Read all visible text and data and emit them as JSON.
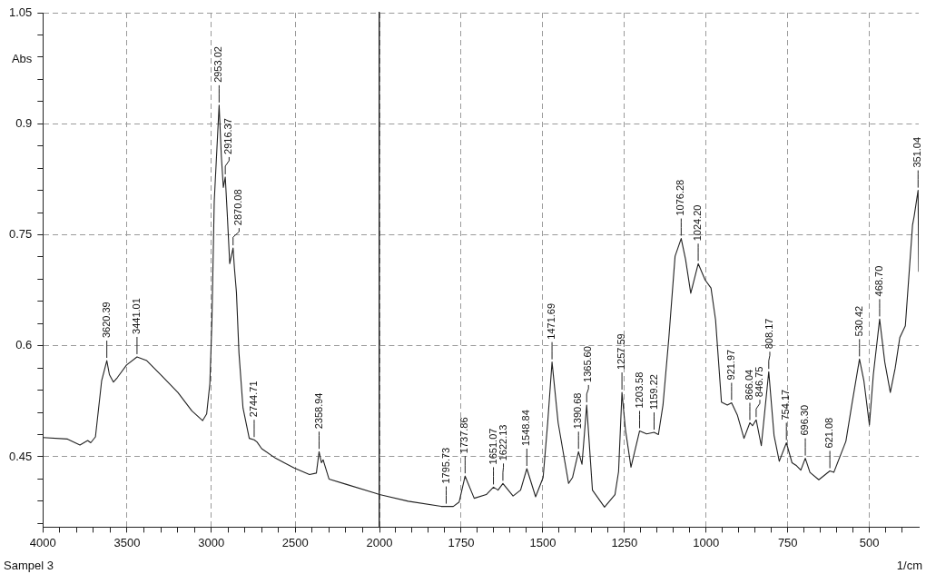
{
  "chart_data": [
    {
      "type": "line",
      "ylabel": "Abs",
      "color": "#222222",
      "grid": true,
      "xlim": [
        4000,
        2000
      ],
      "ylim": [
        0.355,
        1.05
      ],
      "xticks": [
        4000,
        {
          "value": 3900,
          "label": null
        },
        {
          "value": 3800,
          "label": null
        },
        {
          "value": 3700,
          "label": null
        },
        {
          "value": 3600,
          "label": null
        },
        3500,
        {
          "value": 3400,
          "label": null
        },
        {
          "value": 3300,
          "label": null
        },
        {
          "value": 3200,
          "label": null
        },
        {
          "value": 3100,
          "label": null
        },
        3000,
        {
          "value": 2900,
          "label": null
        },
        {
          "value": 2800,
          "label": null
        },
        {
          "value": 2700,
          "label": null
        },
        {
          "value": 2600,
          "label": null
        },
        2500,
        {
          "value": 2400,
          "label": null
        },
        {
          "value": 2300,
          "label": null
        },
        {
          "value": 2200,
          "label": null
        },
        {
          "value": 2100,
          "label": null
        },
        2000
      ],
      "yticks": [
        {
          "value": 0.36,
          "label": null
        },
        {
          "value": 0.39,
          "label": null
        },
        {
          "value": 0.42,
          "label": null
        },
        0.45,
        {
          "value": 0.48,
          "label": null
        },
        {
          "value": 0.51,
          "label": null
        },
        {
          "value": 0.54,
          "label": null
        },
        {
          "value": 0.57,
          "label": null
        },
        0.6,
        {
          "value": 0.63,
          "label": null
        },
        {
          "value": 0.66,
          "label": null
        },
        {
          "value": 0.69,
          "label": null
        },
        {
          "value": 0.72,
          "label": null
        },
        0.75,
        {
          "value": 0.78,
          "label": null
        },
        {
          "value": 0.81,
          "label": null
        },
        {
          "value": 0.84,
          "label": null
        },
        {
          "value": 0.87,
          "label": null
        },
        0.9,
        {
          "value": 0.93,
          "label": null
        },
        {
          "value": 0.96,
          "label": null
        },
        {
          "value": 0.99,
          "label": null
        },
        {
          "value": 1.02,
          "label": null
        },
        1.05
      ],
      "x": [
        4000,
        3854,
        3780,
        3734,
        3716,
        3688,
        3651,
        3620.39,
        3605,
        3581,
        3558,
        3503,
        3441.01,
        3383,
        3300,
        3198,
        3115,
        3051,
        3027,
        3008,
        2996,
        2982,
        2953.02,
        2940,
        2928,
        2916.37,
        2905,
        2890,
        2870.08,
        2862,
        2850,
        2835,
        2811,
        2774,
        2744.71,
        2728,
        2700,
        2617,
        2507,
        2416,
        2375,
        2358.94,
        2345,
        2335,
        2300,
        2200,
        2025,
        2000
      ],
      "values": [
        0.476,
        0.474,
        0.466,
        0.472,
        0.469,
        0.477,
        0.553,
        0.58,
        0.561,
        0.551,
        0.557,
        0.574,
        0.585,
        0.58,
        0.561,
        0.537,
        0.512,
        0.499,
        0.508,
        0.549,
        0.631,
        0.795,
        0.925,
        0.857,
        0.814,
        0.828,
        0.78,
        0.711,
        0.732,
        0.705,
        0.672,
        0.59,
        0.516,
        0.475,
        0.473,
        0.47,
        0.461,
        0.448,
        0.435,
        0.426,
        0.428,
        0.457,
        0.442,
        0.446,
        0.42,
        0.413,
        0.401,
        0.399
      ],
      "annotations": [
        "Sampel 3",
        {
          "text": "3620.39",
          "x": 3620.39,
          "y": 0.58
        },
        {
          "text": "3441.01",
          "x": 3441.01,
          "y": 0.585
        },
        {
          "text": "2953.02",
          "x": 2953.02,
          "y": 0.925
        },
        {
          "text": "2916.37",
          "x": 2916.37,
          "y": 0.828
        },
        {
          "text": "2870.08",
          "x": 2870.08,
          "y": 0.732
        },
        {
          "text": "2744.71",
          "x": 2744.71,
          "y": 0.473
        },
        {
          "text": "2358.94",
          "x": 2358.94,
          "y": 0.457
        }
      ]
    },
    {
      "type": "line",
      "xlabel": "1/cm",
      "color": "#222222",
      "grid": true,
      "tick_labels": "x",
      "xlim": [
        2000,
        349
      ],
      "ylim": [
        0.355,
        1.05
      ],
      "xticks": [
        {
          "value": 1950,
          "label": null
        },
        {
          "value": 1900,
          "label": null
        },
        {
          "value": 1850,
          "label": null
        },
        {
          "value": 1800,
          "label": null
        },
        1750,
        {
          "value": 1700,
          "label": null
        },
        {
          "value": 1650,
          "label": null
        },
        {
          "value": 1600,
          "label": null
        },
        {
          "value": 1550,
          "label": null
        },
        1500,
        {
          "value": 1450,
          "label": null
        },
        {
          "value": 1400,
          "label": null
        },
        {
          "value": 1350,
          "label": null
        },
        {
          "value": 1300,
          "label": null
        },
        1250,
        {
          "value": 1200,
          "label": null
        },
        {
          "value": 1150,
          "label": null
        },
        {
          "value": 1100,
          "label": null
        },
        {
          "value": 1050,
          "label": null
        },
        1000,
        {
          "value": 950,
          "label": null
        },
        {
          "value": 900,
          "label": null
        },
        {
          "value": 850,
          "label": null
        },
        {
          "value": 800,
          "label": null
        },
        750,
        {
          "value": 700,
          "label": null
        },
        {
          "value": 650,
          "label": null
        },
        {
          "value": 600,
          "label": null
        },
        {
          "value": 550,
          "label": null
        },
        500,
        {
          "value": 450,
          "label": null
        },
        {
          "value": 400,
          "label": null
        }
      ],
      "yticks": [
        0.45,
        0.6,
        0.75,
        0.9,
        1.05
      ],
      "x": [
        2000,
        1912,
        1811,
        1774,
        1756,
        1737.86,
        1710,
        1673,
        1651.07,
        1637,
        1622.13,
        1591,
        1568,
        1548.84,
        1522,
        1499,
        1485,
        1471.69,
        1453,
        1421,
        1409,
        1390.68,
        1380,
        1365.6,
        1348,
        1311,
        1279,
        1268,
        1257.59,
        1247,
        1230,
        1203.58,
        1182,
        1159.22,
        1146,
        1132,
        1114,
        1095,
        1076.28,
        1063,
        1047,
        1024.2,
        1003,
        985,
        971,
        953,
        935,
        921.97,
        904,
        884,
        866.04,
        858,
        846.75,
        831,
        808.17,
        792,
        776,
        754.17,
        737,
        723,
        710,
        696.3,
        682,
        655,
        621.08,
        609,
        572,
        554,
        530.42,
        517,
        500,
        488,
        468.7,
        453,
        436,
        421,
        407,
        390,
        368,
        363,
        351.04,
        349
      ],
      "values": [
        0.399,
        0.39,
        0.383,
        0.383,
        0.389,
        0.424,
        0.394,
        0.399,
        0.409,
        0.405,
        0.414,
        0.397,
        0.405,
        0.434,
        0.396,
        0.422,
        0.496,
        0.578,
        0.496,
        0.414,
        0.422,
        0.457,
        0.44,
        0.52,
        0.405,
        0.382,
        0.399,
        0.43,
        0.537,
        0.487,
        0.436,
        0.485,
        0.481,
        0.483,
        0.48,
        0.52,
        0.611,
        0.721,
        0.745,
        0.717,
        0.671,
        0.711,
        0.689,
        0.678,
        0.635,
        0.524,
        0.52,
        0.523,
        0.506,
        0.475,
        0.496,
        0.492,
        0.5,
        0.465,
        0.565,
        0.479,
        0.444,
        0.469,
        0.442,
        0.438,
        0.432,
        0.448,
        0.429,
        0.419,
        0.431,
        0.429,
        0.471,
        0.52,
        0.582,
        0.553,
        0.493,
        0.561,
        0.636,
        0.578,
        0.537,
        0.57,
        0.611,
        0.627,
        0.763,
        0.775,
        0.81,
        0.7
      ],
      "annotations": [
        {
          "text": "1795.73",
          "x": 1795.73,
          "y": 0.383
        },
        {
          "text": "1737.86",
          "x": 1737.86,
          "y": 0.424
        },
        {
          "text": "1651.07",
          "x": 1651.07,
          "y": 0.409
        },
        {
          "text": "1622.13",
          "x": 1622.13,
          "y": 0.414
        },
        {
          "text": "1548.84",
          "x": 1548.84,
          "y": 0.434
        },
        {
          "text": "1471.69",
          "x": 1471.69,
          "y": 0.578
        },
        {
          "text": "1390.68",
          "x": 1390.68,
          "y": 0.457
        },
        {
          "text": "1365.60",
          "x": 1365.6,
          "y": 0.52
        },
        {
          "text": "1257.59",
          "x": 1257.59,
          "y": 0.537
        },
        {
          "text": "1203.58",
          "x": 1203.58,
          "y": 0.485
        },
        {
          "text": "1159.22",
          "x": 1159.22,
          "y": 0.483
        },
        {
          "text": "1076.28",
          "x": 1076.28,
          "y": 0.745
        },
        {
          "text": "1024.20",
          "x": 1024.2,
          "y": 0.711
        },
        {
          "text": "921.97",
          "x": 921.97,
          "y": 0.523
        },
        {
          "text": "866.04",
          "x": 866.04,
          "y": 0.496
        },
        {
          "text": "846.75",
          "x": 846.75,
          "y": 0.5
        },
        {
          "text": "808.17",
          "x": 808.17,
          "y": 0.565
        },
        {
          "text": "754.17",
          "x": 754.17,
          "y": 0.469
        },
        {
          "text": "696.30",
          "x": 696.3,
          "y": 0.448
        },
        {
          "text": "621.08",
          "x": 621.08,
          "y": 0.431
        },
        {
          "text": "530.42",
          "x": 530.42,
          "y": 0.582
        },
        {
          "text": "468.70",
          "x": 468.7,
          "y": 0.636
        },
        {
          "text": "351.04",
          "x": 351.04,
          "y": 0.81
        }
      ]
    }
  ]
}
